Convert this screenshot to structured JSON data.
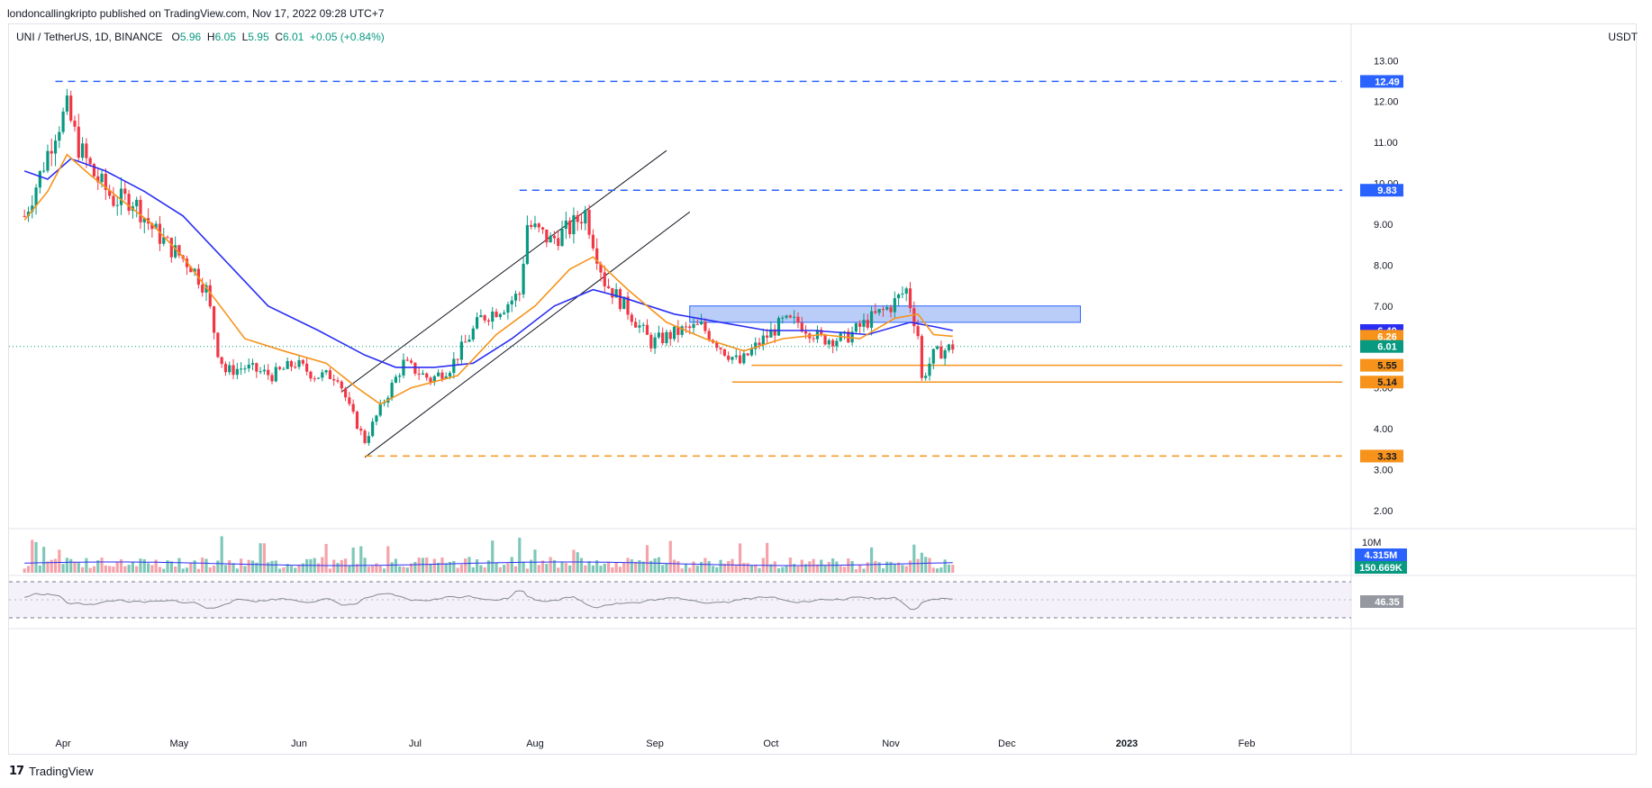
{
  "header": {
    "published": "londoncallingkripto published on TradingView.com, Nov 17, 2022 09:28 UTC+7"
  },
  "legend": {
    "symbol": "UNI / TetherUS, 1D, BINANCE",
    "o_label": "O",
    "o": "5.96",
    "h_label": "H",
    "h": "6.05",
    "l_label": "L",
    "l": "5.95",
    "c_label": "C",
    "c": "6.01",
    "change": "+0.05 (+0.84%)"
  },
  "axis_unit": "USDT",
  "footer": {
    "logo": "TradingView"
  },
  "colors": {
    "up": "#089981",
    "down": "#f23645",
    "ma_fast": "#f7931a",
    "ma_slow": "#2a2ef5",
    "blue_level": "#2962ff",
    "orange_level": "#f7931a",
    "zone_fill": "#9db8f5",
    "zone_stroke": "#2962ff",
    "rsi_line": "#868993",
    "rsi_band": "#ede7f6"
  },
  "chart_data": {
    "type": "candlestick",
    "price_axis": {
      "ticks": [
        "2.00",
        "3.00",
        "4.00",
        "5.00",
        "6.00",
        "7.00",
        "8.00",
        "9.00",
        "10.00",
        "11.00",
        "12.00",
        "13.00"
      ],
      "range": [
        1.6,
        13.6
      ]
    },
    "time_axis": [
      "Apr",
      "May",
      "Jun",
      "Jul",
      "Aug",
      "Sep",
      "Oct",
      "Nov",
      "Dec",
      "2023",
      "Feb"
    ],
    "price_close_points": [
      [
        "2022-03-22",
        9.2
      ],
      [
        "2022-03-26",
        10.2
      ],
      [
        "2022-03-30",
        11.3
      ],
      [
        "2022-04-02",
        11.8
      ],
      [
        "2022-04-05",
        10.9
      ],
      [
        "2022-04-09",
        10.2
      ],
      [
        "2022-04-14",
        9.6
      ],
      [
        "2022-04-19",
        9.6
      ],
      [
        "2022-04-24",
        8.9
      ],
      [
        "2022-04-29",
        8.4
      ],
      [
        "2022-05-04",
        8.0
      ],
      [
        "2022-05-08",
        7.4
      ],
      [
        "2022-05-11",
        5.9
      ],
      [
        "2022-05-13",
        5.4
      ],
      [
        "2022-05-18",
        5.5
      ],
      [
        "2022-05-25",
        5.3
      ],
      [
        "2022-05-31",
        5.6
      ],
      [
        "2022-06-05",
        5.3
      ],
      [
        "2022-06-11",
        5.3
      ],
      [
        "2022-06-14",
        4.5
      ],
      [
        "2022-06-18",
        3.7
      ],
      [
        "2022-06-22",
        4.5
      ],
      [
        "2022-06-28",
        5.6
      ],
      [
        "2022-07-05",
        5.2
      ],
      [
        "2022-07-10",
        5.5
      ],
      [
        "2022-07-18",
        6.7
      ],
      [
        "2022-07-24",
        7.0
      ],
      [
        "2022-07-28",
        7.3
      ],
      [
        "2022-07-30",
        9.0
      ],
      [
        "2022-08-05",
        8.6
      ],
      [
        "2022-08-10",
        8.9
      ],
      [
        "2022-08-14",
        9.3
      ],
      [
        "2022-08-19",
        7.6
      ],
      [
        "2022-08-25",
        6.9
      ],
      [
        "2022-08-31",
        6.1
      ],
      [
        "2022-09-08",
        6.4
      ],
      [
        "2022-09-13",
        6.5
      ],
      [
        "2022-09-19",
        5.9
      ],
      [
        "2022-09-23",
        5.6
      ],
      [
        "2022-09-28",
        6.1
      ],
      [
        "2022-10-04",
        6.6
      ],
      [
        "2022-10-08",
        6.6
      ],
      [
        "2022-10-14",
        6.2
      ],
      [
        "2022-10-20",
        6.2
      ],
      [
        "2022-10-27",
        6.7
      ],
      [
        "2022-11-01",
        7.0
      ],
      [
        "2022-11-05",
        7.4
      ],
      [
        "2022-11-08",
        6.3
      ],
      [
        "2022-11-09",
        5.2
      ],
      [
        "2022-11-12",
        5.8
      ],
      [
        "2022-11-17",
        6.01
      ]
    ],
    "ma_fast_points": [
      [
        "2022-03-22",
        9.1
      ],
      [
        "2022-03-28",
        9.8
      ],
      [
        "2022-04-02",
        10.7
      ],
      [
        "2022-04-08",
        10.2
      ],
      [
        "2022-04-16",
        9.6
      ],
      [
        "2022-04-24",
        9.0
      ],
      [
        "2022-05-02",
        8.2
      ],
      [
        "2022-05-10",
        7.2
      ],
      [
        "2022-05-18",
        6.2
      ],
      [
        "2022-05-28",
        5.9
      ],
      [
        "2022-06-08",
        5.6
      ],
      [
        "2022-06-16",
        5.0
      ],
      [
        "2022-06-22",
        4.6
      ],
      [
        "2022-06-30",
        5.0
      ],
      [
        "2022-07-12",
        5.3
      ],
      [
        "2022-07-22",
        6.3
      ],
      [
        "2022-08-01",
        7.0
      ],
      [
        "2022-08-10",
        7.9
      ],
      [
        "2022-08-16",
        8.2
      ],
      [
        "2022-08-25",
        7.4
      ],
      [
        "2022-09-04",
        6.6
      ],
      [
        "2022-09-14",
        6.2
      ],
      [
        "2022-09-24",
        5.9
      ],
      [
        "2022-10-04",
        6.2
      ],
      [
        "2022-10-14",
        6.3
      ],
      [
        "2022-10-24",
        6.2
      ],
      [
        "2022-11-02",
        6.7
      ],
      [
        "2022-11-08",
        6.8
      ],
      [
        "2022-11-12",
        6.3
      ],
      [
        "2022-11-17",
        6.26
      ]
    ],
    "ma_slow_points": [
      [
        "2022-03-22",
        10.3
      ],
      [
        "2022-03-28",
        10.1
      ],
      [
        "2022-04-03",
        10.6
      ],
      [
        "2022-04-12",
        10.3
      ],
      [
        "2022-04-22",
        9.8
      ],
      [
        "2022-05-02",
        9.2
      ],
      [
        "2022-05-12",
        8.2
      ],
      [
        "2022-05-24",
        7.0
      ],
      [
        "2022-06-06",
        6.4
      ],
      [
        "2022-06-18",
        5.8
      ],
      [
        "2022-06-26",
        5.5
      ],
      [
        "2022-07-06",
        5.5
      ],
      [
        "2022-07-16",
        5.6
      ],
      [
        "2022-07-26",
        6.2
      ],
      [
        "2022-08-06",
        7.0
      ],
      [
        "2022-08-16",
        7.4
      ],
      [
        "2022-08-24",
        7.2
      ],
      [
        "2022-09-06",
        6.8
      ],
      [
        "2022-09-18",
        6.6
      ],
      [
        "2022-09-30",
        6.4
      ],
      [
        "2022-10-12",
        6.4
      ],
      [
        "2022-10-26",
        6.3
      ],
      [
        "2022-11-06",
        6.6
      ],
      [
        "2022-11-12",
        6.5
      ],
      [
        "2022-11-17",
        6.4
      ]
    ],
    "levels": [
      {
        "value": 12.49,
        "label": "12.49",
        "color": "#2962ff",
        "style": "dashed",
        "from": "2022-03-30"
      },
      {
        "value": 9.83,
        "label": "9.83",
        "color": "#2962ff",
        "style": "dashed",
        "from": "2022-07-28"
      },
      {
        "value": 5.55,
        "label": "5.55",
        "color": "#f7931a",
        "style": "solid",
        "from": "2022-09-26"
      },
      {
        "value": 5.14,
        "label": "5.14",
        "color": "#f7931a",
        "style": "solid",
        "from": "2022-09-21"
      },
      {
        "value": 3.33,
        "label": "3.33",
        "color": "#f7931a",
        "style": "dashed",
        "from": "2022-06-18"
      }
    ],
    "price_tags": [
      {
        "value": 6.4,
        "label": "6.40",
        "color": "#2a2ef5"
      },
      {
        "value": 6.26,
        "label": "6.26",
        "color": "#f7931a"
      },
      {
        "value": 6.01,
        "label": "6.01",
        "color": "#089981"
      }
    ],
    "zone": {
      "from": "2022-09-10",
      "to": "2022-12-20",
      "low": 6.6,
      "high": 7.0
    },
    "channel": [
      {
        "from": [
          "2022-06-12",
          4.9
        ],
        "to": [
          "2022-09-04",
          10.8
        ]
      },
      {
        "from": [
          "2022-06-18",
          3.3
        ],
        "to": [
          "2022-09-10",
          9.3
        ]
      }
    ],
    "volume": {
      "tags": [
        {
          "label": "4.315M",
          "color": "#2962ff"
        },
        {
          "label": "150.669K",
          "color": "#089981"
        }
      ],
      "axis_label": "10M"
    },
    "rsi": {
      "value": "46.35",
      "upper": 70,
      "lower": 30
    }
  }
}
